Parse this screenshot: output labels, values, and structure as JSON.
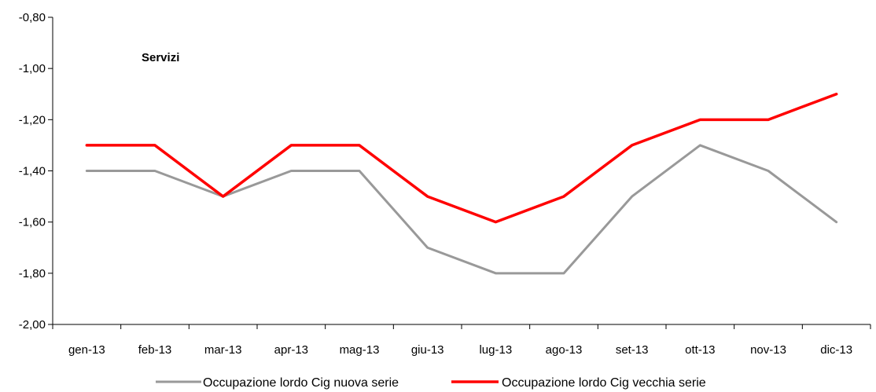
{
  "chart_data": {
    "type": "line",
    "title": "Servizi",
    "categories": [
      "gen-13",
      "feb-13",
      "mar-13",
      "apr-13",
      "mag-13",
      "giu-13",
      "lug-13",
      "ago-13",
      "set-13",
      "ott-13",
      "nov-13",
      "dic-13"
    ],
    "ylim": [
      -2.0,
      -0.8
    ],
    "yticks": [
      "-0,80",
      "-1,00",
      "-1,20",
      "-1,40",
      "-1,60",
      "-1,80",
      "-2,00"
    ],
    "ytick_values": [
      -0.8,
      -1.0,
      -1.2,
      -1.4,
      -1.6,
      -1.8,
      -2.0
    ],
    "grid": false,
    "legend_position": "bottom",
    "series": [
      {
        "name": "Occupazione lordo Cig nuova serie",
        "color": "#999999",
        "values": [
          -1.4,
          -1.4,
          -1.5,
          -1.4,
          -1.4,
          -1.7,
          -1.8,
          -1.8,
          -1.5,
          -1.3,
          -1.4,
          -1.6
        ]
      },
      {
        "name": "Occupazione lordo Cig vecchia serie",
        "color": "#ff0000",
        "values": [
          -1.3,
          -1.3,
          -1.5,
          -1.3,
          -1.3,
          -1.5,
          -1.6,
          -1.5,
          -1.3,
          -1.2,
          -1.2,
          -1.1
        ]
      }
    ]
  }
}
